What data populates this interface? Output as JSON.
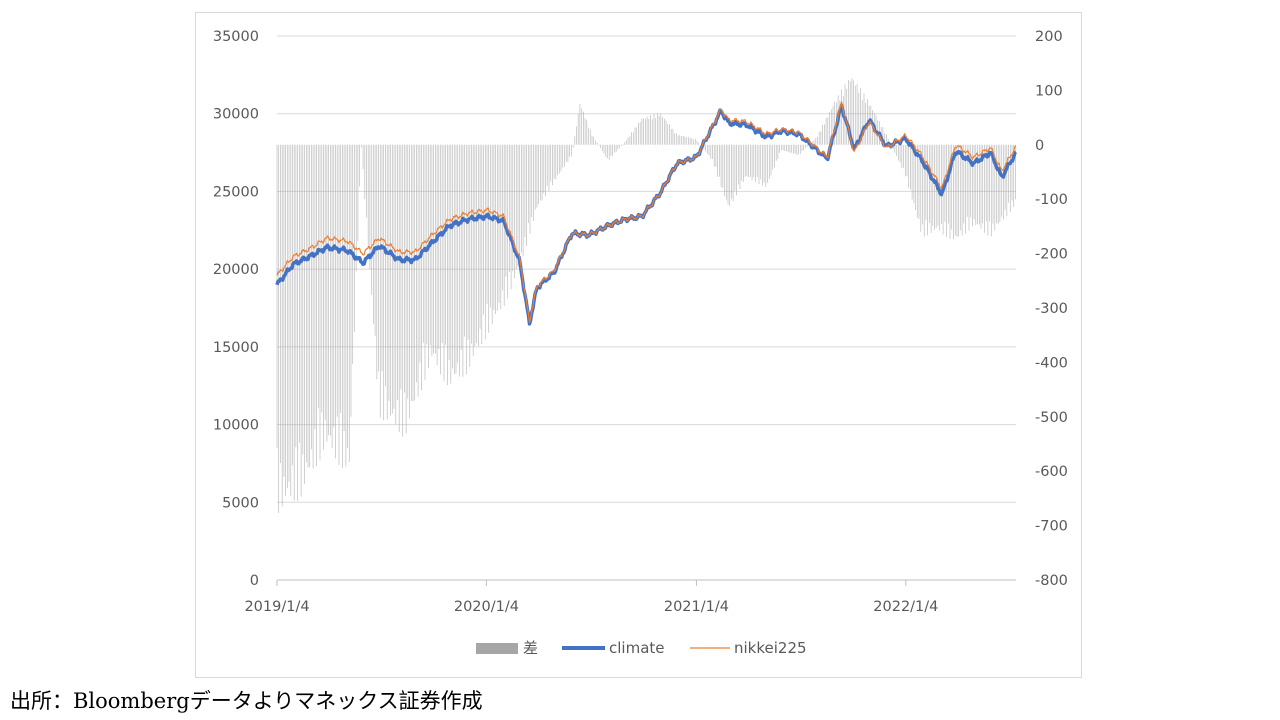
{
  "source_note": "出所：Bloombergデータよりマネックス証券作成",
  "chart_data": {
    "type": "line",
    "title": "",
    "x_tick_labels": [
      "2019/1/4",
      "2020/1/4",
      "2021/1/4",
      "2022/1/4"
    ],
    "x_range": [
      "2019-01-04",
      "2022-07-15"
    ],
    "y_left": {
      "min": 0,
      "max": 35000,
      "ticks": [
        0,
        5000,
        10000,
        15000,
        20000,
        25000,
        30000,
        35000
      ]
    },
    "y_right": {
      "min": -800,
      "max": 200,
      "ticks": [
        -800,
        -700,
        -600,
        -500,
        -400,
        -300,
        -200,
        -100,
        0,
        100,
        200
      ]
    },
    "grid": true,
    "legend_position": "bottom",
    "series": [
      {
        "name": "差",
        "type": "bar",
        "axis": "right",
        "color": "#a6a6a6",
        "points": [
          [
            "2019-01-04",
            -680
          ],
          [
            "2019-02-15",
            -650
          ],
          [
            "2019-03-29",
            -560
          ],
          [
            "2019-05-10",
            -610
          ],
          [
            "2019-05-31",
            -5
          ],
          [
            "2019-07-01",
            -500
          ],
          [
            "2019-08-15",
            -540
          ],
          [
            "2019-09-30",
            -400
          ],
          [
            "2019-11-01",
            -450
          ],
          [
            "2019-12-02",
            -420
          ],
          [
            "2020-01-06",
            -350
          ],
          [
            "2020-02-03",
            -300
          ],
          [
            "2020-03-02",
            -230
          ],
          [
            "2020-04-01",
            -120
          ],
          [
            "2020-05-01",
            -70
          ],
          [
            "2020-06-01",
            -20
          ],
          [
            "2020-06-15",
            80
          ],
          [
            "2020-07-06",
            20
          ],
          [
            "2020-08-03",
            -30
          ],
          [
            "2020-09-01",
            5
          ],
          [
            "2020-10-01",
            50
          ],
          [
            "2020-11-02",
            60
          ],
          [
            "2020-12-01",
            20
          ],
          [
            "2021-01-04",
            10
          ],
          [
            "2021-02-01",
            -30
          ],
          [
            "2021-03-01",
            -120
          ],
          [
            "2021-04-01",
            -60
          ],
          [
            "2021-05-06",
            -80
          ],
          [
            "2021-06-01",
            -10
          ],
          [
            "2021-07-01",
            -20
          ],
          [
            "2021-08-02",
            15
          ],
          [
            "2021-09-01",
            80
          ],
          [
            "2021-10-01",
            130
          ],
          [
            "2021-11-01",
            80
          ],
          [
            "2021-12-01",
            20
          ],
          [
            "2022-01-04",
            -60
          ],
          [
            "2022-02-01",
            -170
          ],
          [
            "2022-03-01",
            -160
          ],
          [
            "2022-04-01",
            -180
          ],
          [
            "2022-05-02",
            -150
          ],
          [
            "2022-06-01",
            -170
          ],
          [
            "2022-07-15",
            -110
          ]
        ]
      },
      {
        "name": "climate",
        "type": "line",
        "axis": "left",
        "color": "#4472c4",
        "points": [
          [
            "2019-01-04",
            19000
          ],
          [
            "2019-02-01",
            20300
          ],
          [
            "2019-03-01",
            20800
          ],
          [
            "2019-04-01",
            21400
          ],
          [
            "2019-05-07",
            21200
          ],
          [
            "2019-06-03",
            20400
          ],
          [
            "2019-07-01",
            21500
          ],
          [
            "2019-08-05",
            20600
          ],
          [
            "2019-09-02",
            20600
          ],
          [
            "2019-10-01",
            21700
          ],
          [
            "2019-11-01",
            22800
          ],
          [
            "2019-12-02",
            23200
          ],
          [
            "2020-01-06",
            23400
          ],
          [
            "2020-02-03",
            23100
          ],
          [
            "2020-03-02",
            20500
          ],
          [
            "2020-03-19",
            16500
          ],
          [
            "2020-04-01",
            18800
          ],
          [
            "2020-05-01",
            19800
          ],
          [
            "2020-06-01",
            22300
          ],
          [
            "2020-07-01",
            22200
          ],
          [
            "2020-08-03",
            22800
          ],
          [
            "2020-09-01",
            23200
          ],
          [
            "2020-10-01",
            23400
          ],
          [
            "2020-11-02",
            24900
          ],
          [
            "2020-12-01",
            26800
          ],
          [
            "2021-01-04",
            27200
          ],
          [
            "2021-02-16",
            30200
          ],
          [
            "2021-03-01",
            29400
          ],
          [
            "2021-04-01",
            29300
          ],
          [
            "2021-05-06",
            28500
          ],
          [
            "2021-06-01",
            28900
          ],
          [
            "2021-07-01",
            28700
          ],
          [
            "2021-08-20",
            27100
          ],
          [
            "2021-09-14",
            30500
          ],
          [
            "2021-10-06",
            27700
          ],
          [
            "2021-11-01",
            29600
          ],
          [
            "2021-12-01",
            27900
          ],
          [
            "2022-01-04",
            28400
          ],
          [
            "2022-02-01",
            27000
          ],
          [
            "2022-03-08",
            24800
          ],
          [
            "2022-04-01",
            27600
          ],
          [
            "2022-05-02",
            26800
          ],
          [
            "2022-06-01",
            27500
          ],
          [
            "2022-06-20",
            25900
          ],
          [
            "2022-07-15",
            27500
          ]
        ]
      },
      {
        "name": "nikkei225",
        "type": "line",
        "axis": "left",
        "color": "#ed7d31",
        "points": [
          [
            "2019-01-04",
            19600
          ],
          [
            "2019-02-01",
            20800
          ],
          [
            "2019-03-01",
            21300
          ],
          [
            "2019-04-01",
            22000
          ],
          [
            "2019-05-07",
            21800
          ],
          [
            "2019-06-03",
            21000
          ],
          [
            "2019-07-01",
            22000
          ],
          [
            "2019-08-05",
            21100
          ],
          [
            "2019-09-02",
            21100
          ],
          [
            "2019-10-01",
            22200
          ],
          [
            "2019-11-01",
            23200
          ],
          [
            "2019-12-02",
            23600
          ],
          [
            "2020-01-06",
            23800
          ],
          [
            "2020-02-03",
            23400
          ],
          [
            "2020-03-02",
            20700
          ],
          [
            "2020-03-19",
            16600
          ],
          [
            "2020-04-01",
            18900
          ],
          [
            "2020-05-01",
            19900
          ],
          [
            "2020-06-01",
            22300
          ],
          [
            "2020-07-01",
            22200
          ],
          [
            "2020-08-03",
            22800
          ],
          [
            "2020-09-01",
            23200
          ],
          [
            "2020-10-01",
            23400
          ],
          [
            "2020-11-02",
            24900
          ],
          [
            "2020-12-01",
            26800
          ],
          [
            "2021-01-04",
            27200
          ],
          [
            "2021-02-16",
            30300
          ],
          [
            "2021-03-01",
            29600
          ],
          [
            "2021-04-01",
            29500
          ],
          [
            "2021-05-06",
            28700
          ],
          [
            "2021-06-01",
            29000
          ],
          [
            "2021-07-01",
            28800
          ],
          [
            "2021-08-20",
            27200
          ],
          [
            "2021-09-14",
            30700
          ],
          [
            "2021-10-06",
            27500
          ],
          [
            "2021-11-01",
            29500
          ],
          [
            "2021-12-01",
            27800
          ],
          [
            "2022-01-04",
            28600
          ],
          [
            "2022-02-01",
            27300
          ],
          [
            "2022-03-08",
            25200
          ],
          [
            "2022-04-01",
            28000
          ],
          [
            "2022-05-02",
            27200
          ],
          [
            "2022-06-01",
            27800
          ],
          [
            "2022-06-20",
            26300
          ],
          [
            "2022-07-15",
            27900
          ]
        ]
      }
    ]
  }
}
